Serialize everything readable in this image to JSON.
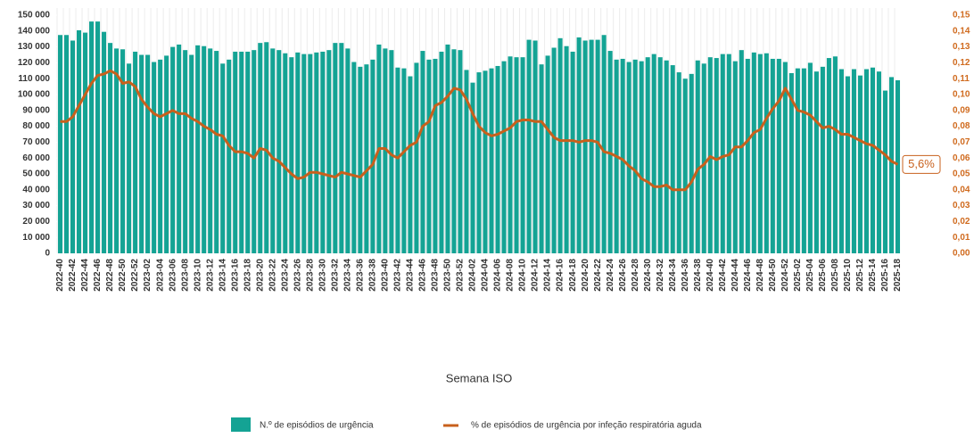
{
  "chart_data": {
    "type": "bar-line",
    "x_label": "Semana ISO",
    "categories": [
      "2022-40",
      null,
      "2022-42",
      null,
      "2022-44",
      null,
      "2022-46",
      null,
      "2022-48",
      null,
      "2022-50",
      null,
      "2022-52",
      null,
      "2023-02",
      null,
      "2023-04",
      null,
      "2023-06",
      null,
      "2023-08",
      null,
      "2023-10",
      null,
      "2023-12",
      null,
      "2023-14",
      null,
      "2023-16",
      null,
      "2023-18",
      null,
      "2023-20",
      null,
      "2023-22",
      null,
      "2023-24",
      null,
      "2023-26",
      null,
      "2023-28",
      null,
      "2023-30",
      null,
      "2023-32",
      null,
      "2023-34",
      null,
      "2023-36",
      null,
      "2023-38",
      null,
      "2023-40",
      null,
      "2023-42",
      null,
      "2023-44",
      null,
      "2023-46",
      null,
      "2023-48",
      null,
      "2023-50",
      null,
      "2023-52",
      null,
      "2024-02",
      null,
      "2024-04",
      null,
      "2024-06",
      null,
      "2024-08",
      null,
      "2024-10",
      null,
      "2024-12",
      null,
      "2024-14",
      null,
      "2024-16",
      null,
      "2024-18",
      null,
      "2024-20",
      null,
      "2024-22",
      null,
      "2024-24",
      null,
      "2024-26",
      null,
      "2024-28",
      null,
      "2024-30",
      null,
      "2024-32",
      null,
      "2024-34",
      null,
      "2024-36",
      null,
      "2024-38",
      null,
      "2024-40",
      null,
      "2024-42",
      null,
      "2024-44",
      null,
      "2024-46",
      null,
      "2024-48",
      null,
      "2024-50",
      null,
      "2024-52",
      null,
      "2025-02",
      null,
      "2025-04",
      null,
      "2025-06",
      null,
      "2025-08",
      null,
      "2025-10",
      null,
      "2025-12",
      null,
      "2025-14",
      null,
      "2025-16",
      null,
      "2025-18"
    ],
    "series": [
      {
        "name": "N.º de episódios de urgência",
        "type": "bar",
        "color": "#14a394",
        "values": [
          137500,
          137500,
          134000,
          140500,
          139000,
          146000,
          146000,
          139500,
          132500,
          129000,
          128500,
          119500,
          127000,
          125000,
          125000,
          120500,
          122000,
          124500,
          130000,
          131500,
          128000,
          125000,
          131000,
          130500,
          129000,
          127500,
          119500,
          122000,
          127000,
          127000,
          127000,
          128000,
          132500,
          133000,
          129000,
          128000,
          126000,
          123500,
          126500,
          125500,
          125500,
          126500,
          127000,
          128000,
          132500,
          132500,
          129000,
          120500,
          117500,
          119000,
          122000,
          131500,
          129000,
          128000,
          117000,
          116500,
          111500,
          120000,
          127500,
          122000,
          122500,
          127000,
          131500,
          128500,
          128000,
          115500,
          107500,
          114000,
          115000,
          116500,
          118000,
          121000,
          124000,
          123500,
          123500,
          134500,
          134000,
          119000,
          124500,
          129500,
          135500,
          130500,
          127000,
          136000,
          134000,
          134500,
          134500,
          137500,
          127500,
          122000,
          122500,
          120500,
          122000,
          121000,
          123500,
          125500,
          123500,
          121500,
          118500,
          114000,
          110000,
          113000,
          121500,
          119500,
          123500,
          123000,
          125500,
          125500,
          121000,
          128000,
          122500,
          126500,
          125500,
          126000,
          122500,
          122500,
          120500,
          113500,
          116500,
          116500,
          120000,
          114500,
          117500,
          123000,
          124000,
          116000,
          111500,
          116000,
          112000,
          116000,
          117000,
          114500,
          102500,
          111000,
          109000
        ]
      },
      {
        "name": "% de episódios de urgência por infeção respiratória aguda",
        "type": "line",
        "axis": "y2",
        "color": "#c8601c",
        "values": [
          0.083,
          0.083,
          0.086,
          0.093,
          0.1,
          0.107,
          0.112,
          0.113,
          0.115,
          0.113,
          0.107,
          0.108,
          0.105,
          0.097,
          0.092,
          0.088,
          0.086,
          0.088,
          0.09,
          0.088,
          0.088,
          0.085,
          0.083,
          0.08,
          0.078,
          0.075,
          0.074,
          0.068,
          0.064,
          0.064,
          0.063,
          0.06,
          0.066,
          0.065,
          0.06,
          0.058,
          0.054,
          0.05,
          0.047,
          0.048,
          0.051,
          0.051,
          0.05,
          0.049,
          0.048,
          0.051,
          0.05,
          0.049,
          0.048,
          0.052,
          0.056,
          0.066,
          0.066,
          0.062,
          0.06,
          0.064,
          0.068,
          0.07,
          0.08,
          0.083,
          0.093,
          0.095,
          0.099,
          0.104,
          0.103,
          0.097,
          0.088,
          0.08,
          0.076,
          0.074,
          0.075,
          0.077,
          0.079,
          0.083,
          0.084,
          0.084,
          0.083,
          0.083,
          0.078,
          0.073,
          0.071,
          0.071,
          0.071,
          0.07,
          0.071,
          0.071,
          0.07,
          0.064,
          0.063,
          0.061,
          0.059,
          0.055,
          0.052,
          0.047,
          0.045,
          0.042,
          0.042,
          0.043,
          0.04,
          0.04,
          0.04,
          0.045,
          0.053,
          0.056,
          0.061,
          0.059,
          0.061,
          0.062,
          0.067,
          0.067,
          0.071,
          0.076,
          0.078,
          0.085,
          0.091,
          0.096,
          0.104,
          0.097,
          0.09,
          0.089,
          0.087,
          0.083,
          0.079,
          0.08,
          0.078,
          0.075,
          0.075,
          0.073,
          0.071,
          0.069,
          0.068,
          0.065,
          0.062,
          0.058,
          0.056
        ]
      }
    ],
    "annotation": "5,6%",
    "ylim": [
      0,
      150000
    ],
    "yticks": [
      0,
      {
        "value": 10000,
        "label": "10 000"
      },
      {
        "value": 20000,
        "label": "20 000"
      },
      {
        "value": 30000,
        "label": "30 000"
      },
      {
        "value": 40000,
        "label": "40 000"
      },
      {
        "value": 50000,
        "label": "50 000"
      },
      {
        "value": 60000,
        "label": "60 000"
      },
      {
        "value": 70000,
        "label": "70 000"
      },
      {
        "value": 80000,
        "label": "80 000"
      },
      {
        "value": 90000,
        "label": "90 000"
      },
      {
        "value": 100000,
        "label": "100 000"
      },
      {
        "value": 110000,
        "label": "110 000"
      },
      {
        "value": 120000,
        "label": "120 000"
      },
      {
        "value": 130000,
        "label": "130 000"
      },
      {
        "value": 140000,
        "label": "140 000"
      },
      {
        "value": 150000,
        "label": "150 000"
      }
    ],
    "y2lim": [
      0,
      0.15
    ],
    "y2ticks": [
      {
        "value": 0,
        "label": "0,00"
      },
      {
        "value": 0.01,
        "label": "0,01"
      },
      {
        "value": 0.02,
        "label": "0,02"
      },
      {
        "value": 0.03,
        "label": "0,03"
      },
      {
        "value": 0.04,
        "label": "0,04"
      },
      {
        "value": 0.05,
        "label": "0,05"
      },
      {
        "value": 0.06,
        "label": "0,06"
      },
      {
        "value": 0.07,
        "label": "0,07"
      },
      {
        "value": 0.08,
        "label": "0,08"
      },
      {
        "value": 0.09,
        "label": "0,09"
      },
      {
        "value": 0.1,
        "label": "0,10"
      },
      {
        "value": 0.11,
        "label": "0,11"
      },
      {
        "value": 0.12,
        "label": "0,12"
      },
      {
        "value": 0.13,
        "label": "0,13"
      },
      {
        "value": 0.14,
        "label": "0,14"
      },
      {
        "value": 0.15,
        "label": "0,15"
      }
    ],
    "y2_color": "#d06b1f"
  }
}
